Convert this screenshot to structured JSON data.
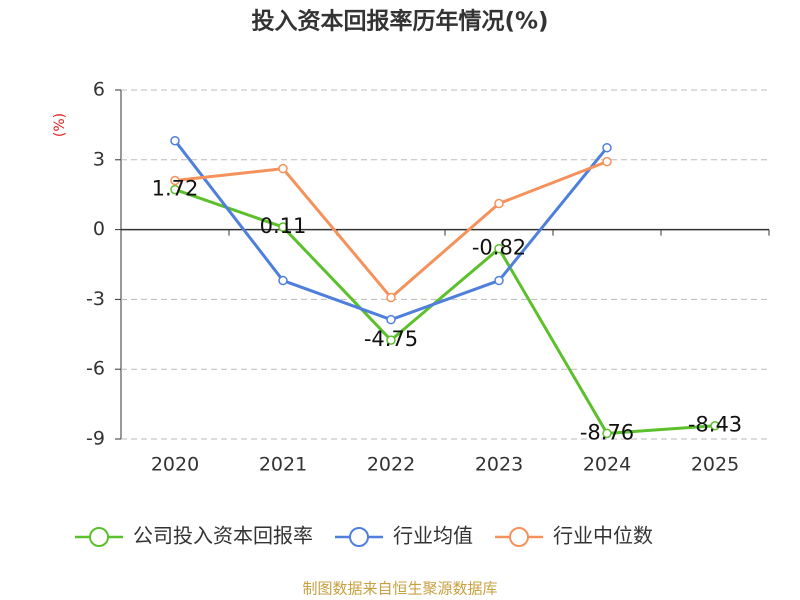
{
  "chart_data": {
    "type": "line",
    "title": "投入资本回报率历年情况(%)",
    "y_label": "(%)",
    "categories": [
      "2020",
      "2021",
      "2022",
      "2023",
      "2024",
      "2025"
    ],
    "series": [
      {
        "name": "公司投入资本回报率",
        "color": "#5cc02c",
        "values": [
          1.72,
          0.11,
          -4.75,
          -0.82,
          -8.76,
          -8.43
        ],
        "show_labels": true
      },
      {
        "name": "行业均值",
        "color": "#4f7fdb",
        "values": [
          3.82,
          -2.19,
          -3.87,
          -2.19,
          3.52,
          null
        ]
      },
      {
        "name": "行业中位数",
        "color": "#f5915a",
        "values": [
          2.11,
          2.62,
          -2.92,
          1.12,
          2.92,
          null
        ]
      }
    ],
    "ylim": [
      -9,
      6
    ],
    "yticks": [
      -9,
      -6,
      -3,
      0,
      3,
      6
    ],
    "grid": true,
    "source": "制图数据来自恒生聚源数据库"
  }
}
